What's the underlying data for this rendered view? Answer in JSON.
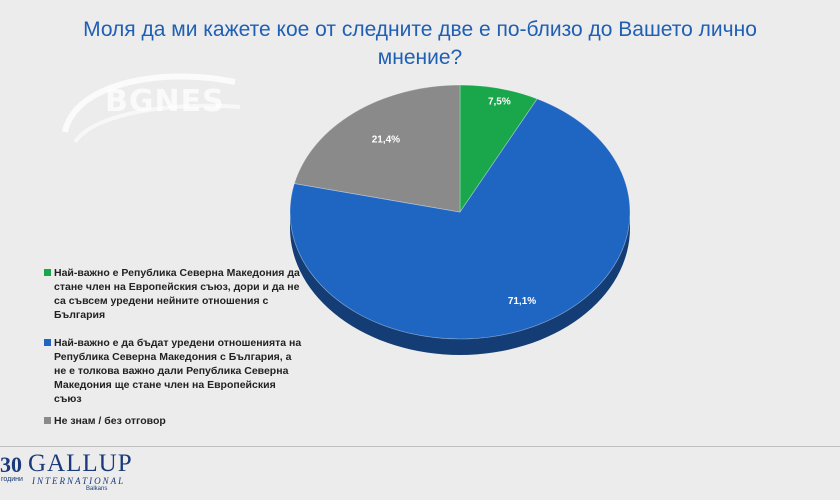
{
  "chart_data": {
    "type": "pie",
    "title": "Моля да ми кажете кое от следните две е по-близо до Вашето лично мнение?",
    "slices": [
      {
        "label": "Най-важно е Република Северна Македония да стане член на Европейския съюз, дори и да не са съвсем уредени нейните отношения с България",
        "value": 7.5,
        "value_label": "7,5%",
        "color": "#1aa64a"
      },
      {
        "label": "Най-важно е да бъдат уредени отношенията на Република Северна Македония с България, а не е толкова важно дали Република Северна Македония ще стане член на Европейския съюз",
        "value": 71.1,
        "value_label": "71,1%",
        "color": "#1f66c2"
      },
      {
        "label": "Не знам / без отговор",
        "value": 21.4,
        "value_label": "21,4%",
        "color": "#8a8a8a"
      }
    ],
    "legend_position": "left"
  },
  "watermark": {
    "text": "BGNES"
  },
  "logo": {
    "years": "30",
    "years_sub": "години",
    "brand": "GALLUP",
    "brand_sub": "INTERNATIONAL",
    "region": "Balkans"
  }
}
